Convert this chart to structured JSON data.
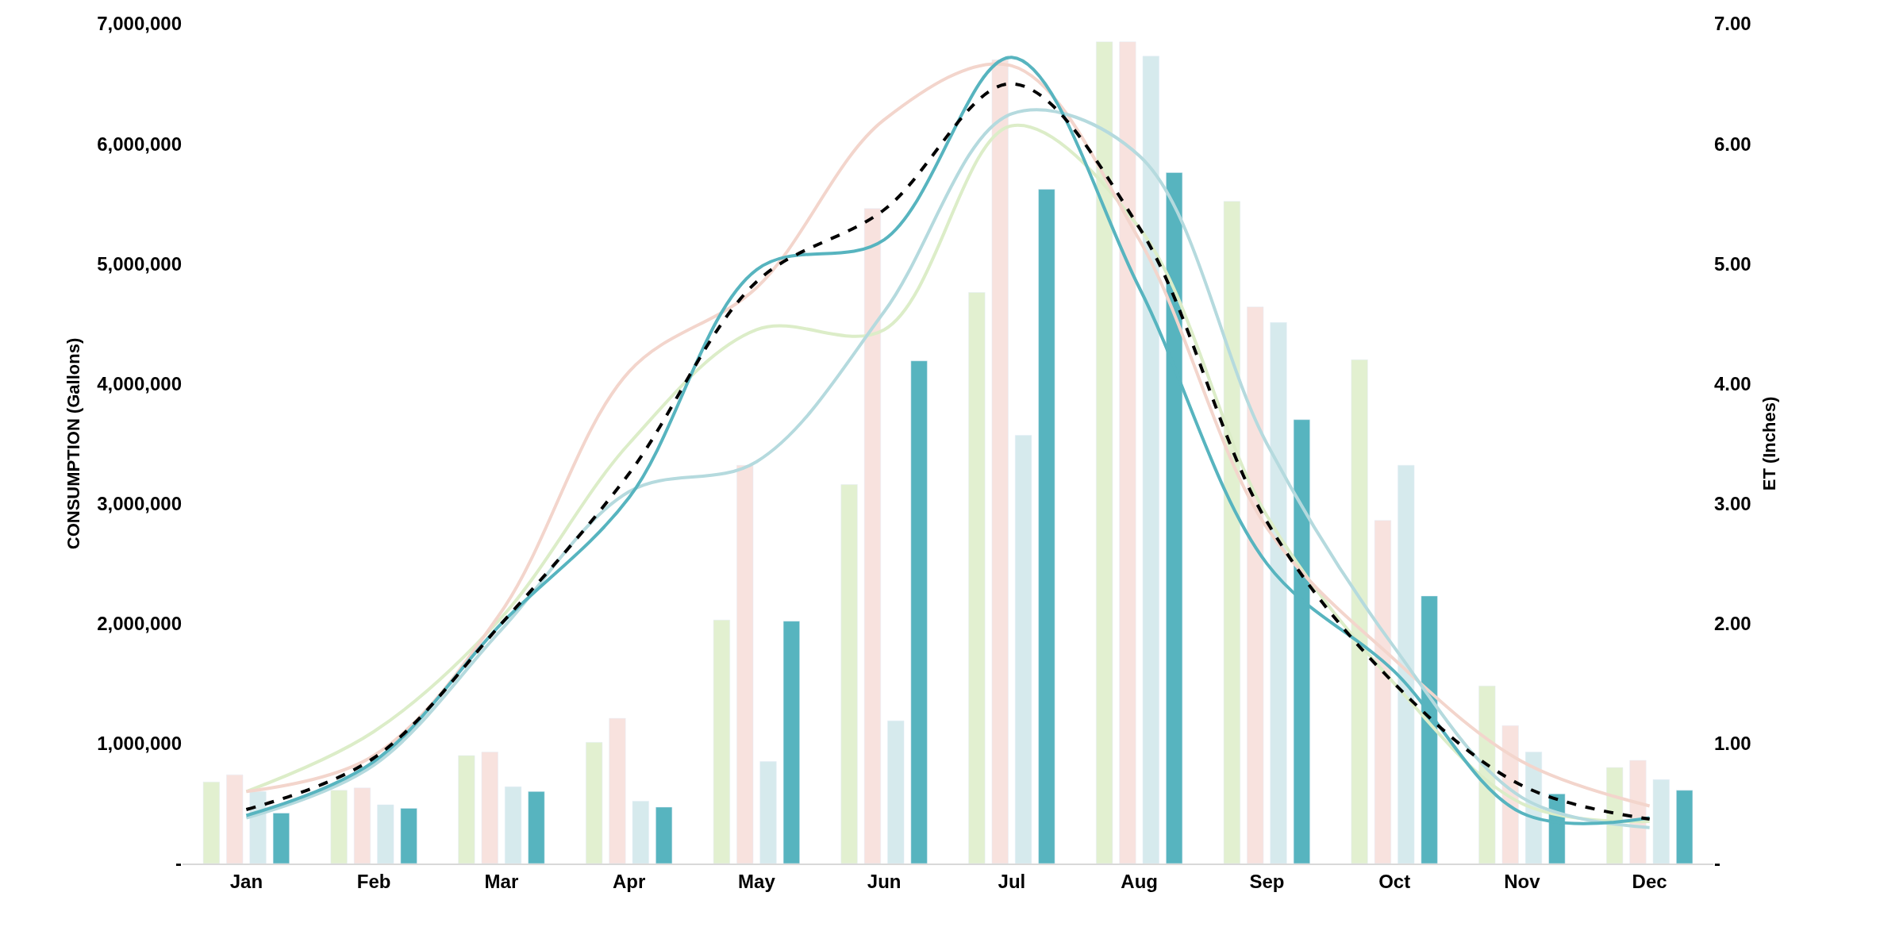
{
  "chart_data": {
    "type": "bar",
    "ylabel": "CONSUMPTION (Gallons)",
    "y2label": "ET (Inches)",
    "categories": [
      "Jan",
      "Feb",
      "Mar",
      "Apr",
      "May",
      "Jun",
      "Jul",
      "Aug",
      "Sep",
      "Oct",
      "Nov",
      "Dec"
    ],
    "series": [
      {
        "color": "#e2f0d0",
        "values": [
          680000,
          610000,
          900000,
          1010000,
          2030000,
          3160000,
          4760000,
          6850000,
          5520000,
          4200000,
          1480000,
          800000
        ]
      },
      {
        "color": "#f8e2de",
        "values": [
          740000,
          630000,
          930000,
          1210000,
          3320000,
          5460000,
          6700000,
          6850000,
          4640000,
          2860000,
          1150000,
          860000
        ]
      },
      {
        "color": "#d6eaed",
        "values": [
          600000,
          490000,
          640000,
          520000,
          850000,
          1190000,
          3570000,
          6730000,
          4510000,
          3320000,
          930000,
          700000
        ]
      },
      {
        "color": "#57b4bf",
        "values": [
          420000,
          460000,
          600000,
          470000,
          2020000,
          4190000,
          5620000,
          5760000,
          3700000,
          2230000,
          580000,
          610000
        ]
      },
      {
        "type": "line",
        "axis": "y2",
        "color": "#dcedc8",
        "values": [
          0.6,
          1.1,
          2.05,
          3.5,
          4.45,
          4.45,
          6.15,
          5.3,
          2.9,
          1.5,
          0.5,
          0.35
        ]
      },
      {
        "type": "line",
        "axis": "y2",
        "color": "#f3d5cc",
        "values": [
          0.6,
          0.9,
          2.1,
          4.1,
          4.8,
          6.2,
          6.65,
          5.2,
          2.8,
          1.7,
          0.85,
          0.48
        ]
      },
      {
        "type": "line",
        "axis": "y2",
        "color": "#b5dade",
        "values": [
          0.38,
          0.82,
          1.95,
          3.1,
          3.35,
          4.6,
          6.25,
          5.9,
          3.5,
          1.8,
          0.55,
          0.3
        ]
      },
      {
        "type": "line",
        "axis": "y2",
        "color": "#57b4bf",
        "values": [
          0.4,
          0.85,
          2.0,
          3.05,
          4.95,
          5.2,
          6.72,
          4.8,
          2.5,
          1.6,
          0.42,
          0.38
        ]
      },
      {
        "type": "line",
        "axis": "y2",
        "color": "#000000",
        "line_style": "dashed",
        "values": [
          0.45,
          0.88,
          2.0,
          3.25,
          4.85,
          5.45,
          6.5,
          5.3,
          2.85,
          1.5,
          0.65,
          0.37
        ]
      }
    ],
    "ylim": [
      0,
      7000000
    ],
    "yticks": [
      {
        "value": 0,
        "label": "-"
      },
      {
        "value": 1000000,
        "label": "1,000,000"
      },
      {
        "value": 2000000,
        "label": "2,000,000"
      },
      {
        "value": 3000000,
        "label": "3,000,000"
      },
      {
        "value": 4000000,
        "label": "4,000,000"
      },
      {
        "value": 5000000,
        "label": "5,000,000"
      },
      {
        "value": 6000000,
        "label": "6,000,000"
      },
      {
        "value": 7000000,
        "label": "7,000,000"
      }
    ],
    "y2lim": [
      0,
      7
    ],
    "y2ticks": [
      {
        "value": 0,
        "label": "-"
      },
      {
        "value": 1,
        "label": "1.00"
      },
      {
        "value": 2,
        "label": "2.00"
      },
      {
        "value": 3,
        "label": "3.00"
      },
      {
        "value": 4,
        "label": "4.00"
      },
      {
        "value": 5,
        "label": "5.00"
      },
      {
        "value": 6,
        "label": "6.00"
      },
      {
        "value": 7,
        "label": "7.00"
      }
    ],
    "line_style": "solid"
  }
}
